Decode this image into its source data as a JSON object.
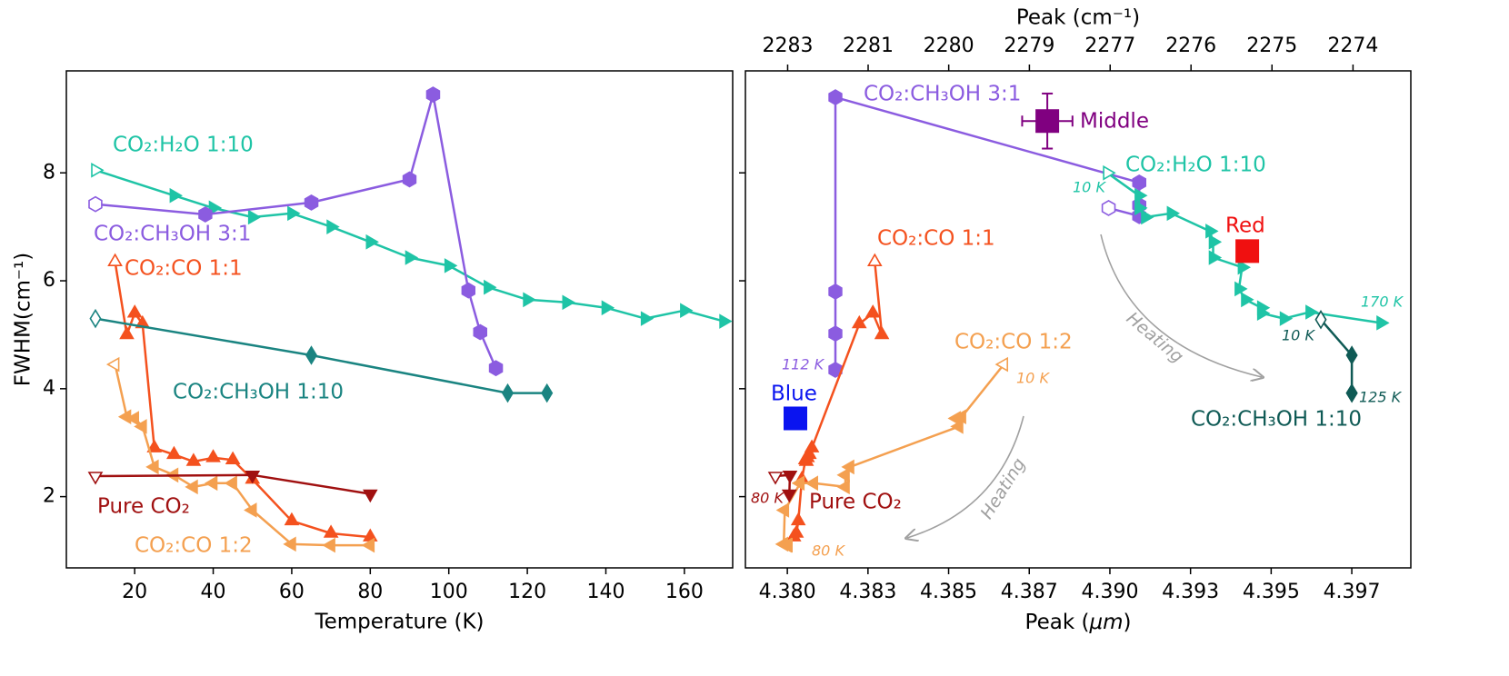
{
  "chart_data": [
    {
      "type": "line",
      "xlabel": "Temperature (K)",
      "ylabel": "FWHM(cm⁻¹)",
      "xlim": [
        2.6,
        172.3
      ],
      "xticks": [
        20,
        40,
        60,
        80,
        100,
        120,
        140,
        160
      ],
      "ylim": [
        0.68,
        9.89
      ],
      "yticks": [
        2,
        4,
        6,
        8
      ],
      "series": [
        {
          "name": "CO₂:H₂O 1:10",
          "color": "#1fc4a6",
          "marker": "triangle-right",
          "x": [
            10,
            30,
            40,
            50,
            60,
            70,
            80,
            90,
            100,
            110,
            120,
            130,
            140,
            150,
            160,
            170
          ],
          "values": [
            8.05,
            7.58,
            7.35,
            7.18,
            7.25,
            7.0,
            6.72,
            6.43,
            6.28,
            5.88,
            5.65,
            5.6,
            5.5,
            5.3,
            5.45,
            5.25
          ]
        },
        {
          "name": "CO₂:CH₃OH 3:1",
          "color": "#8b5ce0",
          "marker": "hexagon",
          "x": [
            10,
            38,
            65,
            90,
            96,
            105,
            108,
            112
          ],
          "values": [
            7.42,
            7.23,
            7.45,
            7.88,
            9.45,
            5.82,
            5.05,
            4.38
          ]
        },
        {
          "name": "CO₂:CO 1:1",
          "color": "#f4511e",
          "marker": "triangle-up",
          "x": [
            15,
            18,
            20,
            22,
            25,
            30,
            35,
            40,
            45,
            50,
            60,
            70,
            80
          ],
          "values": [
            6.35,
            5.0,
            5.4,
            5.2,
            2.9,
            2.78,
            2.65,
            2.72,
            2.68,
            2.32,
            1.55,
            1.32,
            1.25
          ]
        },
        {
          "name": "CO₂:CH₃OH 1:10",
          "color": "#1a8481",
          "marker": "diamond",
          "x": [
            10,
            65,
            115,
            125
          ],
          "values": [
            5.3,
            4.62,
            3.92,
            3.92
          ]
        },
        {
          "name": "CO₂:CO 1:2",
          "color": "#f4a050",
          "marker": "triangle-left",
          "x": [
            15,
            18,
            20,
            22,
            25,
            30,
            35,
            40,
            45,
            50,
            60,
            70,
            80
          ],
          "values": [
            4.45,
            3.48,
            3.45,
            3.3,
            2.55,
            2.4,
            2.18,
            2.25,
            2.25,
            1.75,
            1.12,
            1.1,
            1.1
          ]
        },
        {
          "name": "Pure CO₂",
          "color": "#a01010",
          "marker": "triangle-down",
          "x": [
            10,
            50,
            80
          ],
          "values": [
            2.38,
            2.4,
            2.05
          ]
        }
      ]
    },
    {
      "type": "line",
      "xlabel": "Peak (μm)",
      "x2label": "Peak (cm⁻¹)",
      "xlim": [
        4.3787,
        4.39933
      ],
      "xticks": [
        {
          "value": 4.38,
          "label": "4.380"
        },
        {
          "value": 4.3825,
          "label": "4.383"
        },
        {
          "value": 4.385,
          "label": "4.385"
        },
        {
          "value": 4.3875,
          "label": "4.387"
        },
        {
          "value": 4.39,
          "label": "4.390"
        },
        {
          "value": 4.3925,
          "label": "4.393"
        },
        {
          "value": 4.395,
          "label": "4.395"
        },
        {
          "value": 4.3975,
          "label": "4.397"
        }
      ],
      "x2ticks": [
        {
          "value": 2283.1,
          "label": "2283"
        },
        {
          "value": 2281.8,
          "label": "2281"
        },
        {
          "value": 2280.5,
          "label": "2280"
        },
        {
          "value": 2279.2,
          "label": "2279"
        },
        {
          "value": 2277.9,
          "label": "2277"
        },
        {
          "value": 2276.6,
          "label": "2276"
        },
        {
          "value": 2275.3,
          "label": "2275"
        },
        {
          "value": 2274.0,
          "label": "2274"
        }
      ],
      "ylim": [
        0.68,
        9.89
      ],
      "yticks": [
        2,
        4,
        6,
        8
      ],
      "series": [
        {
          "name": "CO₂:CH₃OH 3:1",
          "color": "#8b5ce0",
          "marker": "hexagon",
          "x": [
            4.38996,
            4.39091,
            4.39091,
            4.39091,
            4.38149,
            4.38149,
            4.38149,
            4.38149
          ],
          "values": [
            7.35,
            7.2,
            7.4,
            7.82,
            9.4,
            5.8,
            5.02,
            4.35
          ]
        },
        {
          "name": "CO₂:H₂O 1:10",
          "color": "#1fc4a6",
          "marker": "triangle-right",
          "x": [
            4.38992,
            4.3909,
            4.3909,
            4.3911,
            4.3919,
            4.3931,
            4.3932,
            4.3932,
            4.3941,
            4.394,
            4.3942,
            4.3947,
            4.3947,
            4.3954,
            4.3962,
            4.3984
          ],
          "values": [
            8.0,
            7.58,
            7.35,
            7.18,
            7.25,
            6.92,
            6.72,
            6.43,
            6.25,
            5.85,
            5.65,
            5.5,
            5.4,
            5.3,
            5.42,
            5.22
          ]
        },
        {
          "name": "CO₂:CO 1:1",
          "color": "#f4511e",
          "marker": "triangle-up",
          "x": [
            4.38271,
            4.38293,
            4.38265,
            4.38223,
            4.38076,
            4.38068,
            4.38059,
            4.38062,
            4.38056,
            4.38045,
            4.38034,
            4.38028,
            4.3802
          ],
          "values": [
            6.35,
            5.0,
            5.4,
            5.2,
            2.9,
            2.78,
            2.65,
            2.72,
            2.68,
            2.32,
            1.55,
            1.32,
            1.25
          ]
        },
        {
          "name": "CO₂:CO 1:2",
          "color": "#f4a050",
          "marker": "triangle-left",
          "x": [
            4.38671,
            4.38541,
            4.38524,
            4.38532,
            4.38194,
            4.3818,
            4.3818,
            4.38082,
            4.3804,
            4.37992,
            4.37989,
            4.38,
            4.38003
          ],
          "values": [
            4.45,
            3.48,
            3.45,
            3.3,
            2.55,
            2.4,
            2.18,
            2.25,
            2.25,
            1.75,
            1.12,
            1.1,
            1.1
          ]
        },
        {
          "name": "CO₂:CH₃OH 1:10",
          "color": "#0f5a55",
          "marker": "diamond",
          "x": [
            4.39654,
            4.3975,
            4.3975,
            4.3975
          ],
          "values": [
            5.28,
            4.62,
            3.92,
            3.92
          ]
        },
        {
          "name": "Pure CO₂",
          "color": "#a01010",
          "marker": "triangle-down",
          "x": [
            4.37963,
            4.38008,
            4.38006
          ],
          "values": [
            2.38,
            2.4,
            2.05
          ]
        }
      ],
      "points": [
        {
          "name": "Blue",
          "color": "#0a14f0",
          "x": 4.38025,
          "y": 3.45
        },
        {
          "name": "Red",
          "color": "#f01010",
          "x": 4.39426,
          "y": 6.55
        },
        {
          "name": "Middle",
          "color": "#800080",
          "x": 4.38806,
          "y": 8.96,
          "xerr": 0.00078,
          "yerr": 0.51
        }
      ],
      "annotations": [
        {
          "text": "10 K",
          "color": "#1fc4a6"
        },
        {
          "text": "170 K",
          "color": "#1fc4a6"
        },
        {
          "text": "112 K",
          "color": "#8b5ce0"
        },
        {
          "text": "80 K",
          "color": "#a01010"
        },
        {
          "text": "10 K",
          "color": "#f4a050"
        },
        {
          "text": "80 K",
          "color": "#f4a050"
        },
        {
          "text": "10 K",
          "color": "#0f5a55"
        },
        {
          "text": "125 K",
          "color": "#0f5a55"
        },
        {
          "text": "Heating",
          "color": "#a0a0a0"
        },
        {
          "text": "Heating",
          "color": "#a0a0a0"
        }
      ]
    }
  ]
}
